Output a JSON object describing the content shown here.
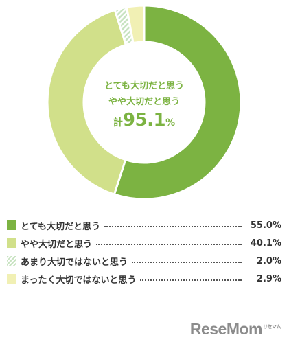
{
  "chart_data": {
    "type": "pie",
    "center_text": {
      "line1": "とても大切だと思う",
      "line2": "やや大切だと思う",
      "total_prefix": "計",
      "total_value": "95.1",
      "total_unit": "%"
    },
    "slices": [
      {
        "label": "とても大切だと思う",
        "value": 55.0,
        "value_text": "55.0%",
        "color": "#7cb342",
        "pattern": "solid"
      },
      {
        "label": "やや大切だと思う",
        "value": 40.1,
        "value_text": "40.1%",
        "color": "#d1e08a",
        "pattern": "solid"
      },
      {
        "label": "あまり大切ではないと思う",
        "value": 2.0,
        "value_text": "2.0%",
        "color": "#c8e3c1",
        "pattern": "striped"
      },
      {
        "label": "まったく大切ではないと思う",
        "value": 2.9,
        "value_text": "2.9%",
        "color": "#f1f0b4",
        "pattern": "solid"
      }
    ]
  },
  "branding": {
    "logo_text": "ReseMom",
    "logo_sub": "リセマム"
  }
}
